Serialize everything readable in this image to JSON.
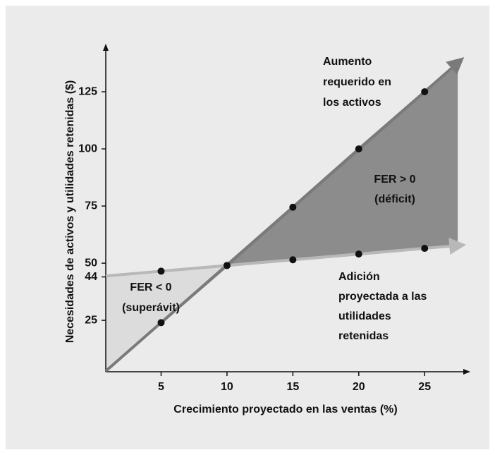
{
  "chart_data": {
    "type": "line",
    "x_label": "Crecimiento proyectado en las ventas (%)",
    "y_label": "Necesidades de activos y utilidades retenidas ($)",
    "x": [
      5,
      10,
      15,
      20,
      25
    ],
    "series": [
      {
        "name": "Aumento requerido en los activos",
        "color": "#7a7a7a",
        "values": [
          24,
          49,
          74.5,
          100,
          125
        ]
      },
      {
        "name": "Adición proyectada a las utilidades retenidas",
        "color": "#b8b8b8",
        "values": [
          46.5,
          49,
          51.5,
          54,
          56.5
        ]
      }
    ],
    "xlim": [
      0.8,
      28.2
    ],
    "ylim": [
      2.5,
      142
    ],
    "xticks": [
      5,
      10,
      15,
      20,
      25
    ],
    "yticks": [
      25,
      44,
      50,
      75,
      100,
      125
    ],
    "annotations": [
      {
        "lines": [
          "Aumento",
          "requerido en",
          "los activos"
        ]
      },
      {
        "lines": [
          "FER > 0",
          "(déficit)"
        ]
      },
      {
        "lines": [
          "FER < 0",
          "(superávit)"
        ]
      },
      {
        "lines": [
          "Adición",
          "proyectada a las",
          "utilidades",
          "retenidas"
        ]
      }
    ],
    "fill_colors": [
      "#8c8c8c",
      "#dcdcdc"
    ]
  }
}
